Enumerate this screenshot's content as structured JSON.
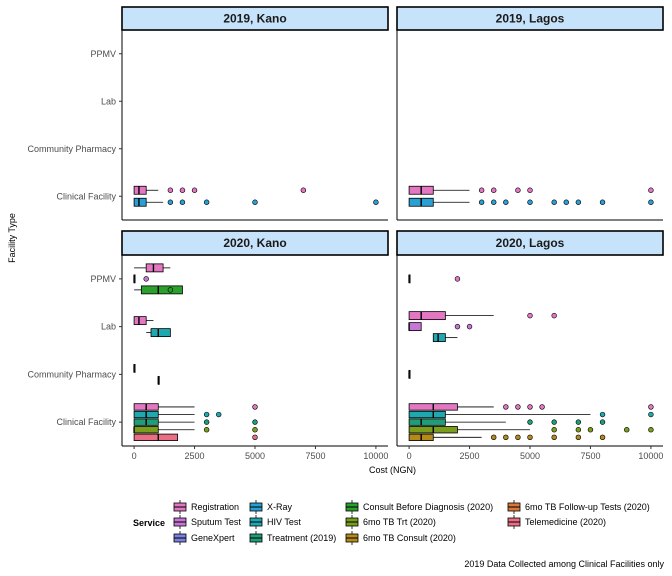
{
  "chart_data": {
    "type": "boxplot",
    "xlabel": "Cost (NGN)",
    "ylabel": "Facility Type",
    "xlim": [
      -500,
      10500
    ],
    "x_ticks": [
      0,
      2500,
      5000,
      7500,
      10000
    ],
    "x_tick_labels": [
      "0",
      "2500",
      "5000",
      "7500",
      "10000"
    ],
    "categories": [
      "PPMV",
      "Lab",
      "Community Pharmacy",
      "Clinical Facility"
    ],
    "caption": "2019 Data Collected among Clinical Facilities only",
    "legend": {
      "title": "Service",
      "position": "bottom",
      "entries": [
        {
          "name": "Registration",
          "color": "#e377c2"
        },
        {
          "name": "Sputum Test",
          "color": "#c775d6"
        },
        {
          "name": "GeneXpert",
          "color": "#7b7fe0"
        },
        {
          "name": "X-Ray",
          "color": "#2a9fd4"
        },
        {
          "name": "HIV Test",
          "color": "#1fa8b0"
        },
        {
          "name": "Treatment (2019)",
          "color": "#1e9e78"
        },
        {
          "name": "Consult Before Diagnosis (2020)",
          "color": "#2ca02c"
        },
        {
          "name": "6mo TB Trt (2020)",
          "color": "#7a9e1c"
        },
        {
          "name": "6mo TB Consult (2020)",
          "color": "#b58a1b"
        },
        {
          "name": "6mo TB Follow-up Tests (2020)",
          "color": "#d97a3a"
        },
        {
          "name": "Telemedicine (2020)",
          "color": "#ea6f84"
        }
      ]
    },
    "panels": [
      {
        "title": "2019, Kano",
        "boxes": [
          {
            "category": "Clinical Facility",
            "service": "Registration",
            "q1": 0,
            "median": 200,
            "q3": 500,
            "whisker_high": 1000,
            "outliers": [
              1500,
              2000,
              2500,
              7000
            ]
          },
          {
            "category": "Clinical Facility",
            "service": "X-Ray",
            "q1": 0,
            "median": 200,
            "q3": 500,
            "whisker_high": 1200,
            "outliers": [
              1500,
              2000,
              3000,
              5000,
              10000
            ]
          }
        ]
      },
      {
        "title": "2019, Lagos",
        "boxes": [
          {
            "category": "Clinical Facility",
            "service": "Registration",
            "q1": 0,
            "median": 500,
            "q3": 1000,
            "whisker_high": 2500,
            "outliers": [
              3000,
              3500,
              4500,
              5000,
              10000
            ]
          },
          {
            "category": "Clinical Facility",
            "service": "X-Ray",
            "q1": 0,
            "median": 500,
            "q3": 1000,
            "whisker_high": 2500,
            "outliers": [
              3000,
              3500,
              4000,
              5000,
              6000,
              6500,
              7000,
              8000,
              10000
            ]
          }
        ]
      },
      {
        "title": "2020, Kano",
        "boxes": [
          {
            "category": "PPMV",
            "service": "Registration",
            "q1": 500,
            "median": 800,
            "q3": 1200,
            "whisker_low": 0,
            "whisker_high": 1500
          },
          {
            "category": "PPMV",
            "service": "Consult Before Diagnosis (2020)",
            "q1": 300,
            "median": 1000,
            "q3": 2000,
            "whisker_low": 0,
            "whisker_high": 2000,
            "outliers": [
              1500
            ]
          },
          {
            "category": "PPMV",
            "service": "Sputum Test",
            "q1": 0,
            "median": 0,
            "q3": 0,
            "outliers": [
              500
            ]
          },
          {
            "category": "Lab",
            "service": "Registration",
            "q1": 0,
            "median": 200,
            "q3": 500,
            "whisker_high": 800
          },
          {
            "category": "Lab",
            "service": "HIV Test",
            "q1": 700,
            "median": 1000,
            "q3": 1500,
            "whisker_low": 500,
            "whisker_high": 1500
          },
          {
            "category": "Community Pharmacy",
            "service": "Registration",
            "q1": 0,
            "median": 0,
            "q3": 0
          },
          {
            "category": "Community Pharmacy",
            "service": "6mo TB Consult (2020)",
            "q1": 1000,
            "median": 1000,
            "q3": 1000
          },
          {
            "category": "Clinical Facility",
            "service": "Registration",
            "q1": 0,
            "median": 500,
            "q3": 1000,
            "whisker_high": 2500,
            "outliers": [
              5000
            ]
          },
          {
            "category": "Clinical Facility",
            "service": "HIV Test",
            "q1": 0,
            "median": 500,
            "q3": 1000,
            "whisker_high": 2500,
            "outliers": [
              3000,
              3500
            ]
          },
          {
            "category": "Clinical Facility",
            "service": "Treatment (2019)",
            "q1": 0,
            "median": 500,
            "q3": 1000,
            "whisker_high": 2500,
            "outliers": [
              3000,
              5000
            ]
          },
          {
            "category": "Clinical Facility",
            "service": "6mo TB Trt (2020)",
            "q1": 0,
            "median": 0,
            "q3": 1000,
            "whisker_high": 2500,
            "outliers": [
              3000,
              5000
            ]
          },
          {
            "category": "Clinical Facility",
            "service": "Telemedicine (2020)",
            "q1": 0,
            "median": 1000,
            "q3": 1800,
            "whisker_high": 1800,
            "outliers": [
              5000
            ]
          }
        ]
      },
      {
        "title": "2020, Lagos",
        "boxes": [
          {
            "category": "PPMV",
            "service": "Registration",
            "q1": 0,
            "median": 0,
            "q3": 0,
            "outliers": [
              2000
            ]
          },
          {
            "category": "Lab",
            "service": "Registration",
            "q1": 0,
            "median": 500,
            "q3": 1500,
            "whisker_high": 3500,
            "outliers": [
              5000,
              6000
            ]
          },
          {
            "category": "Lab",
            "service": "Sputum Test",
            "q1": 0,
            "median": 0,
            "q3": 500,
            "outliers": [
              2000,
              2500
            ]
          },
          {
            "category": "Lab",
            "service": "HIV Test",
            "q1": 1000,
            "median": 1200,
            "q3": 1500,
            "whisker_low": 1000,
            "whisker_high": 2000
          },
          {
            "category": "Community Pharmacy",
            "service": "Registration",
            "q1": 0,
            "median": 0,
            "q3": 0
          },
          {
            "category": "Clinical Facility",
            "service": "Registration",
            "q1": 0,
            "median": 1000,
            "q3": 2000,
            "whisker_high": 3500,
            "outliers": [
              4000,
              4500,
              5000,
              5500,
              10000
            ]
          },
          {
            "category": "Clinical Facility",
            "service": "HIV Test",
            "q1": 0,
            "median": 1000,
            "q3": 1500,
            "whisker_high": 7500,
            "outliers": [
              8000,
              10000
            ]
          },
          {
            "category": "Clinical Facility",
            "service": "Treatment (2019)",
            "q1": 0,
            "median": 500,
            "q3": 1500,
            "whisker_high": 4000,
            "outliers": [
              5000,
              6000,
              7000,
              8000
            ]
          },
          {
            "category": "Clinical Facility",
            "service": "6mo TB Trt (2020)",
            "q1": 0,
            "median": 1000,
            "q3": 2000,
            "whisker_high": 5000,
            "outliers": [
              6000,
              7000,
              7500,
              9000,
              10000
            ]
          },
          {
            "category": "Clinical Facility",
            "service": "6mo TB Consult (2020)",
            "q1": 0,
            "median": 500,
            "q3": 1000,
            "whisker_high": 3000,
            "outliers": [
              3500,
              4000,
              4500,
              5000,
              6000,
              7000,
              8000
            ]
          }
        ]
      }
    ]
  }
}
